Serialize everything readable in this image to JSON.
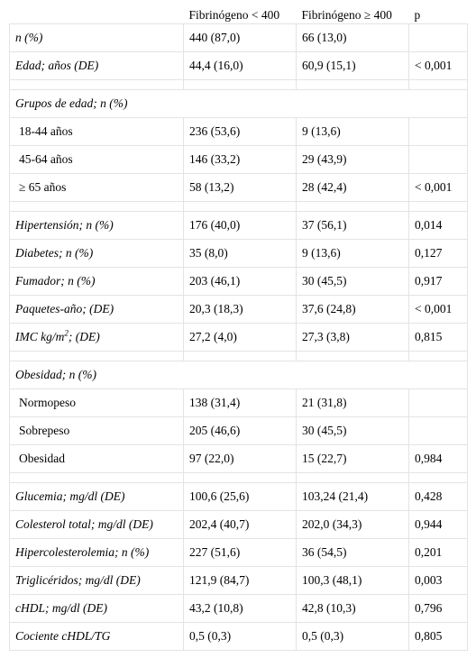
{
  "header": {
    "col1": "",
    "col2": "Fibrinógeno < 400",
    "col3": "Fibrinógeno ≥ 400",
    "col4": "p"
  },
  "rows": {
    "n": {
      "label": "n (%)",
      "v1": "440 (87,0)",
      "v2": "66 (13,0)",
      "p": ""
    },
    "edad": {
      "label": "Edad; años (DE)",
      "v1": "44,4 (16,0)",
      "v2": "60,9 (15,1)",
      "p": "< 0,001"
    },
    "grupos_edad": {
      "label": "Grupos de edad; n (%)"
    },
    "g18_44": {
      "label": "18-44 años",
      "v1": "236 (53,6)",
      "v2": "9 (13,6)",
      "p": ""
    },
    "g45_64": {
      "label": "45-64 años",
      "v1": "146 (33,2)",
      "v2": "29 (43,9)",
      "p": ""
    },
    "g65": {
      "label": "≥ 65 años",
      "v1": "58 (13,2)",
      "v2": "28 (42,4)",
      "p": "< 0,001"
    },
    "hipertension": {
      "label": "Hipertensión; n (%)",
      "v1": "176 (40,0)",
      "v2": "37 (56,1)",
      "p": "0,014"
    },
    "diabetes": {
      "label": "Diabetes; n (%)",
      "v1": "35 (8,0)",
      "v2": "9 (13,6)",
      "p": "0,127"
    },
    "fumador": {
      "label": "Fumador; n (%)",
      "v1": "203 (46,1)",
      "v2": "30 (45,5)",
      "p": "0,917"
    },
    "paquetes": {
      "label": "Paquetes-año; (DE)",
      "v1": "20,3 (18,3)",
      "v2": "37,6 (24,8)",
      "p": "< 0,001"
    },
    "imc": {
      "label_pre": "IMC kg/m",
      "label_sup": "2",
      "label_post": "; (DE)",
      "v1": "27,2 (4,0)",
      "v2": "27,3 (3,8)",
      "p": "0,815"
    },
    "obesidad_grupo": {
      "label": "Obesidad; n (%)"
    },
    "normopeso": {
      "label": "Normopeso",
      "v1": "138 (31,4)",
      "v2": "21 (31,8)",
      "p": ""
    },
    "sobrepeso": {
      "label": "Sobrepeso",
      "v1": "205 (46,6)",
      "v2": "30 (45,5)",
      "p": ""
    },
    "obesidad": {
      "label": "Obesidad",
      "v1": "97 (22,0)",
      "v2": "15 (22,7)",
      "p": "0,984"
    },
    "glucemia": {
      "label": "Glucemia; mg/dl (DE)",
      "v1": "100,6 (25,6)",
      "v2": "103,24 (21,4)",
      "p": "0,428"
    },
    "colesterol": {
      "label": "Colesterol total; mg/dl (DE)",
      "v1": "202,4 (40,7)",
      "v2": "202,0 (34,3)",
      "p": "0,944"
    },
    "hipercol": {
      "label": "Hipercolesterolemia; n (%)",
      "v1": "227 (51,6)",
      "v2": "36 (54,5)",
      "p": "0,201"
    },
    "trigliceridos": {
      "label": "Triglicéridos; mg/dl (DE)",
      "v1": "121,9 (84,7)",
      "v2": "100,3 (48,1)",
      "p": "0,003"
    },
    "chdl": {
      "label": "cHDL; mg/dl (DE)",
      "v1": "43,2 (10,8)",
      "v2": "42,8 (10,3)",
      "p": "0,796"
    },
    "cociente": {
      "label": "Cociente cHDL/TG",
      "v1": "0,5 (0,3)",
      "v2": "0,5 (0,3)",
      "p": "0,805"
    }
  }
}
